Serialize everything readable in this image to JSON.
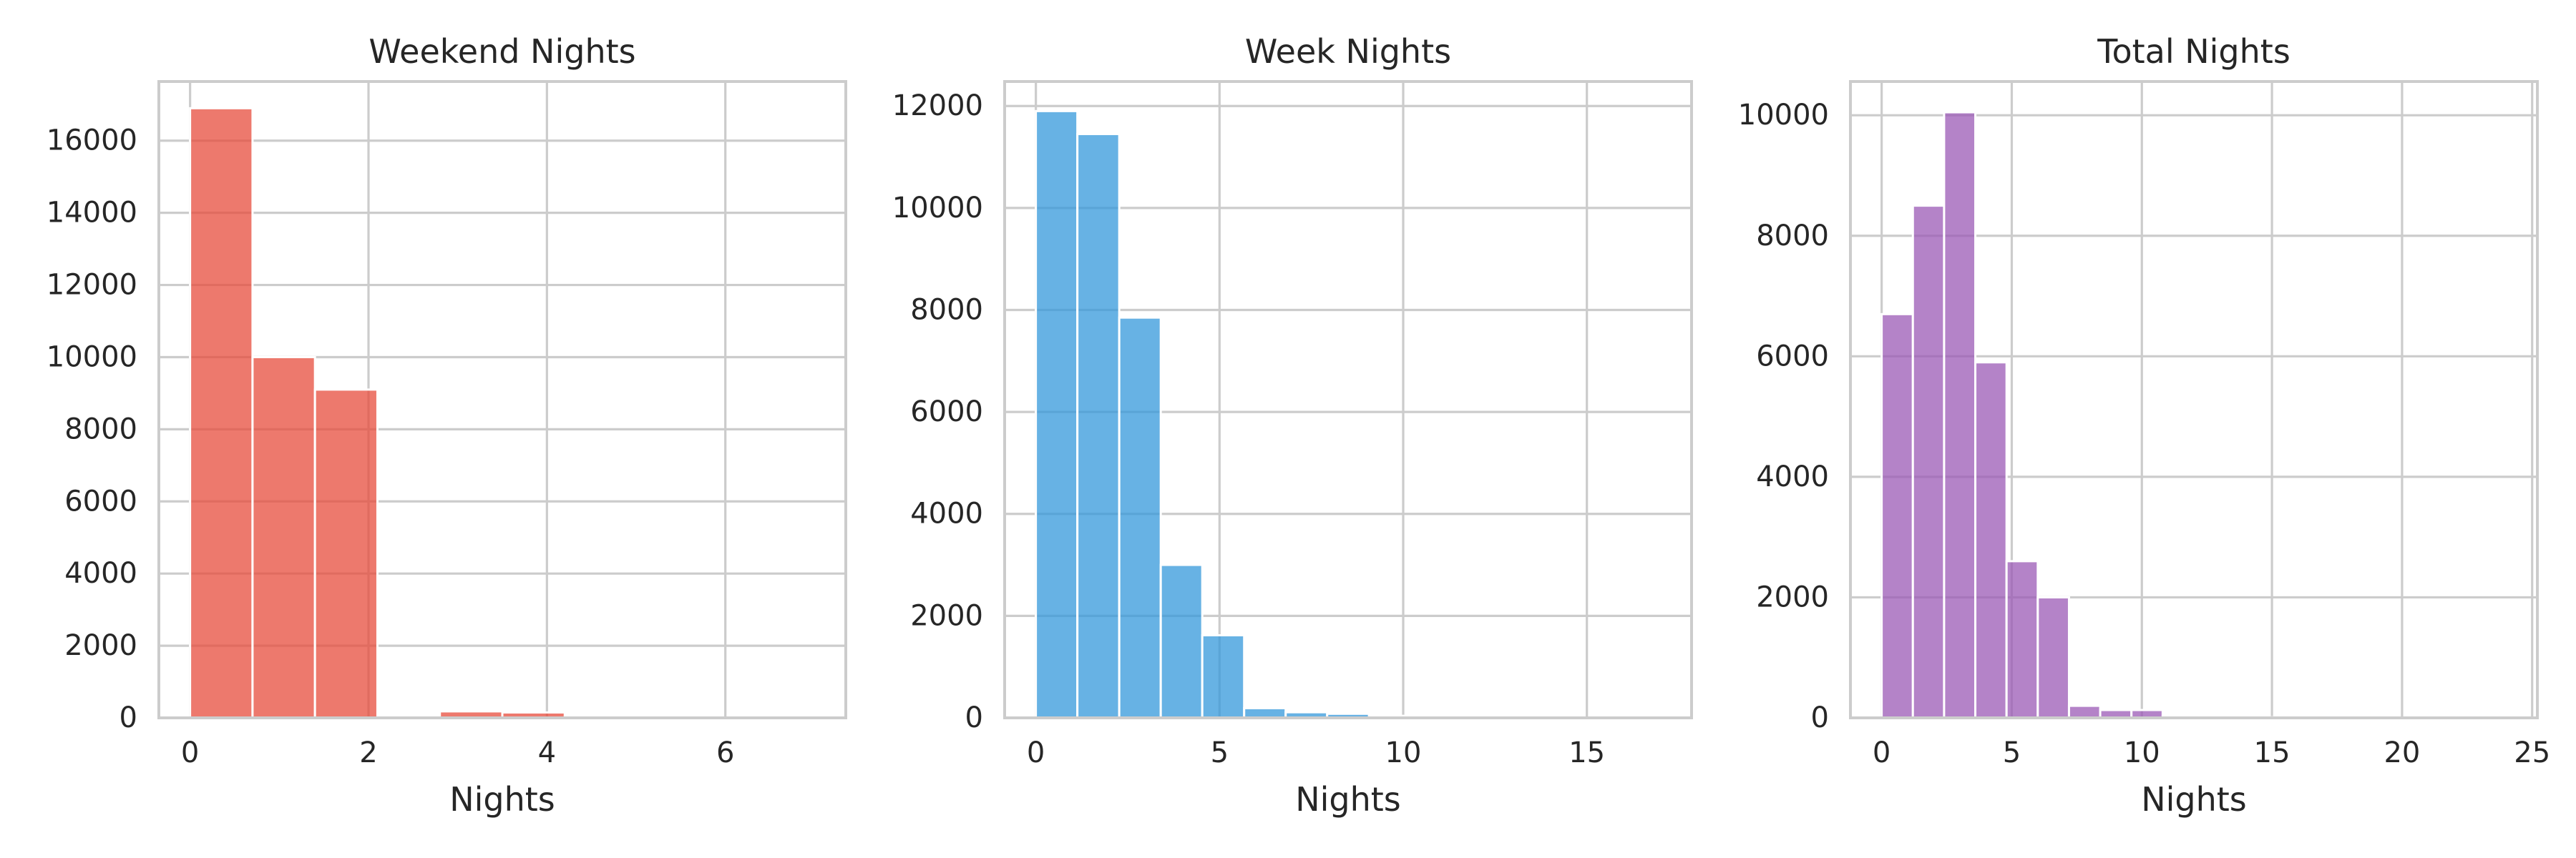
{
  "figure": {
    "background": "#ffffff",
    "grid_color": "#cccccc",
    "text_color": "#262626"
  },
  "chart_data": [
    {
      "type": "bar",
      "title": "Weekend Nights",
      "xlabel": "Nights",
      "ylabel": "",
      "color": "#e74c3c",
      "xlim": [
        -0.35,
        7.35
      ],
      "ylim": [
        0,
        17640
      ],
      "xticks": [
        0,
        2,
        4,
        6
      ],
      "yticks": [
        0,
        2000,
        4000,
        6000,
        8000,
        10000,
        12000,
        14000,
        16000
      ],
      "grid": true,
      "bins": [
        {
          "x0": 0.0,
          "x1": 0.7,
          "count": 16900
        },
        {
          "x0": 0.7,
          "x1": 1.4,
          "count": 10000
        },
        {
          "x0": 1.4,
          "x1": 2.1,
          "count": 9100
        },
        {
          "x0": 2.1,
          "x1": 2.8,
          "count": 0
        },
        {
          "x0": 2.8,
          "x1": 3.5,
          "count": 180
        },
        {
          "x0": 3.5,
          "x1": 4.2,
          "count": 150
        },
        {
          "x0": 4.2,
          "x1": 4.9,
          "count": 20
        },
        {
          "x0": 4.9,
          "x1": 5.6,
          "count": 10
        },
        {
          "x0": 5.6,
          "x1": 6.3,
          "count": 5
        },
        {
          "x0": 6.3,
          "x1": 7.0,
          "count": 5
        }
      ]
    },
    {
      "type": "bar",
      "title": "Week Nights",
      "xlabel": "Nights",
      "ylabel": "",
      "color": "#3498db",
      "xlim": [
        -0.85,
        17.85
      ],
      "ylim": [
        0,
        12480
      ],
      "xticks": [
        0,
        5,
        10,
        15
      ],
      "yticks": [
        0,
        2000,
        4000,
        6000,
        8000,
        10000,
        12000
      ],
      "grid": true,
      "bins": [
        {
          "x0": 0.0,
          "x1": 1.13,
          "count": 11900
        },
        {
          "x0": 1.13,
          "x1": 2.27,
          "count": 11450
        },
        {
          "x0": 2.27,
          "x1": 3.4,
          "count": 7850
        },
        {
          "x0": 3.4,
          "x1": 4.53,
          "count": 3000
        },
        {
          "x0": 4.53,
          "x1": 5.67,
          "count": 1620
        },
        {
          "x0": 5.67,
          "x1": 6.8,
          "count": 190
        },
        {
          "x0": 6.8,
          "x1": 7.93,
          "count": 110
        },
        {
          "x0": 7.93,
          "x1": 9.07,
          "count": 80
        },
        {
          "x0": 9.07,
          "x1": 10.2,
          "count": 40
        },
        {
          "x0": 10.2,
          "x1": 11.33,
          "count": 20
        },
        {
          "x0": 11.33,
          "x1": 12.47,
          "count": 10
        },
        {
          "x0": 12.47,
          "x1": 13.6,
          "count": 8
        },
        {
          "x0": 13.6,
          "x1": 14.73,
          "count": 5
        },
        {
          "x0": 14.73,
          "x1": 15.87,
          "count": 5
        },
        {
          "x0": 15.87,
          "x1": 17.0,
          "count": 5
        }
      ]
    },
    {
      "type": "bar",
      "title": "Total Nights",
      "xlabel": "Nights",
      "ylabel": "",
      "color": "#9b59b6",
      "xlim": [
        -1.2,
        25.2
      ],
      "ylim": [
        0,
        10560
      ],
      "xticks": [
        0,
        5,
        10,
        15,
        20,
        25
      ],
      "yticks": [
        0,
        2000,
        4000,
        6000,
        8000,
        10000
      ],
      "grid": true,
      "bins": [
        {
          "x0": 0.0,
          "x1": 1.2,
          "count": 6700
        },
        {
          "x0": 1.2,
          "x1": 2.4,
          "count": 8500
        },
        {
          "x0": 2.4,
          "x1": 3.6,
          "count": 10050
        },
        {
          "x0": 3.6,
          "x1": 4.8,
          "count": 5900
        },
        {
          "x0": 4.8,
          "x1": 6.0,
          "count": 2600
        },
        {
          "x0": 6.0,
          "x1": 7.2,
          "count": 2000
        },
        {
          "x0": 7.2,
          "x1": 8.4,
          "count": 200
        },
        {
          "x0": 8.4,
          "x1": 9.6,
          "count": 130
        },
        {
          "x0": 9.6,
          "x1": 10.8,
          "count": 130
        },
        {
          "x0": 10.8,
          "x1": 12.0,
          "count": 30
        },
        {
          "x0": 12.0,
          "x1": 13.2,
          "count": 20
        },
        {
          "x0": 13.2,
          "x1": 14.4,
          "count": 20
        },
        {
          "x0": 14.4,
          "x1": 15.6,
          "count": 10
        },
        {
          "x0": 15.6,
          "x1": 16.8,
          "count": 8
        },
        {
          "x0": 16.8,
          "x1": 18.0,
          "count": 5
        },
        {
          "x0": 18.0,
          "x1": 19.2,
          "count": 5
        },
        {
          "x0": 19.2,
          "x1": 20.4,
          "count": 5
        },
        {
          "x0": 20.4,
          "x1": 21.6,
          "count": 3
        },
        {
          "x0": 21.6,
          "x1": 22.8,
          "count": 3
        },
        {
          "x0": 22.8,
          "x1": 24.0,
          "count": 3
        }
      ]
    }
  ]
}
